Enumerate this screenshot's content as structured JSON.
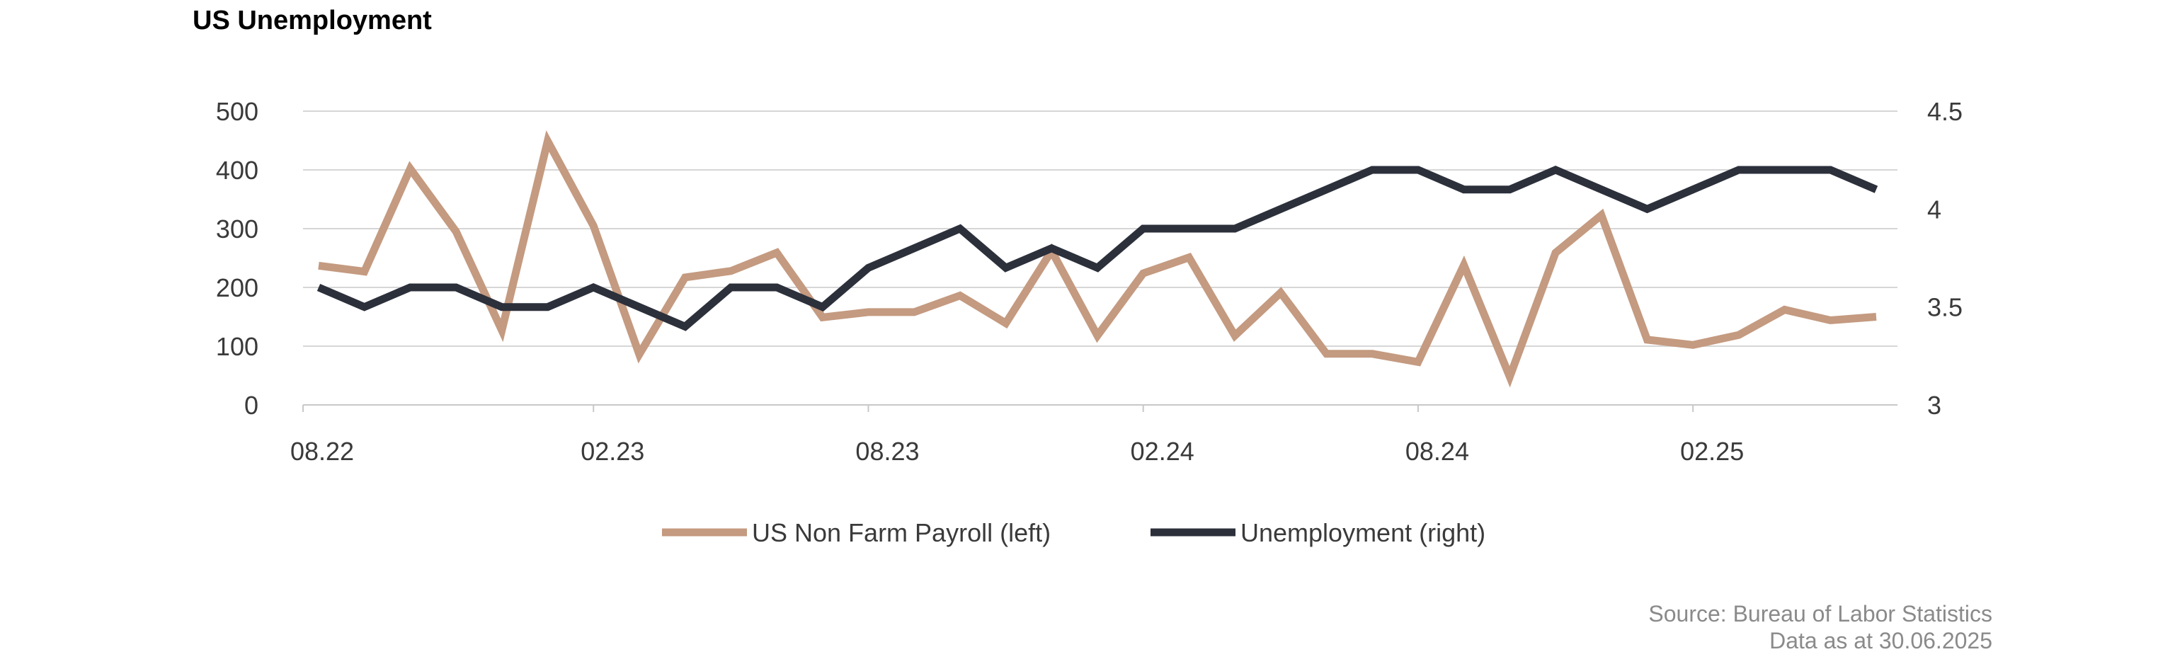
{
  "chart_data": {
    "type": "line",
    "title": "US Unemployment",
    "x": [
      "08.22",
      "09.22",
      "10.22",
      "11.22",
      "12.22",
      "01.23",
      "02.23",
      "03.23",
      "04.23",
      "05.23",
      "06.23",
      "07.23",
      "08.23",
      "09.23",
      "10.23",
      "11.23",
      "12.23",
      "01.24",
      "02.24",
      "03.24",
      "04.24",
      "05.24",
      "06.24",
      "07.24",
      "08.24",
      "09.24",
      "10.24",
      "11.24",
      "12.24",
      "01.25",
      "02.25",
      "03.25",
      "04.25",
      "05.25",
      "06.25"
    ],
    "x_tick_labels": [
      "08.22",
      "02.23",
      "08.23",
      "02.24",
      "08.24",
      "02.25"
    ],
    "y_left": {
      "ylim": [
        0,
        500
      ],
      "ticks": [
        "0",
        "100",
        "200",
        "300",
        "400",
        "500"
      ]
    },
    "y_right": {
      "ylim": [
        3,
        4.5
      ],
      "ticks": [
        "3",
        "3.5",
        "4",
        "4.5"
      ]
    },
    "series": [
      {
        "name": "US Non Farm Payroll (left)",
        "axis": "left",
        "color": "#c49a80",
        "values": [
          237,
          227,
          402,
          295,
          127,
          449,
          305,
          86,
          217,
          228,
          259,
          149,
          158,
          158,
          186,
          139,
          262,
          118,
          224,
          251,
          118,
          191,
          87,
          87,
          73,
          238,
          48,
          259,
          323,
          111,
          102,
          119,
          162,
          144,
          150
        ]
      },
      {
        "name": "Unemployment (right)",
        "axis": "right",
        "color": "#2c303b",
        "values": [
          3.6,
          3.5,
          3.6,
          3.6,
          3.5,
          3.5,
          3.6,
          3.5,
          3.4,
          3.6,
          3.6,
          3.5,
          3.7,
          3.8,
          3.9,
          3.7,
          3.8,
          3.7,
          3.9,
          3.9,
          3.9,
          4.0,
          4.1,
          4.2,
          4.2,
          4.1,
          4.1,
          4.2,
          4.1,
          4.0,
          4.1,
          4.2,
          4.2,
          4.2,
          4.1
        ]
      }
    ],
    "grid": true,
    "legend_placement": "bottom-center"
  },
  "footer": {
    "source": "Source: Bureau of Labor Statistics",
    "date": "Data as at 30.06.2025"
  }
}
